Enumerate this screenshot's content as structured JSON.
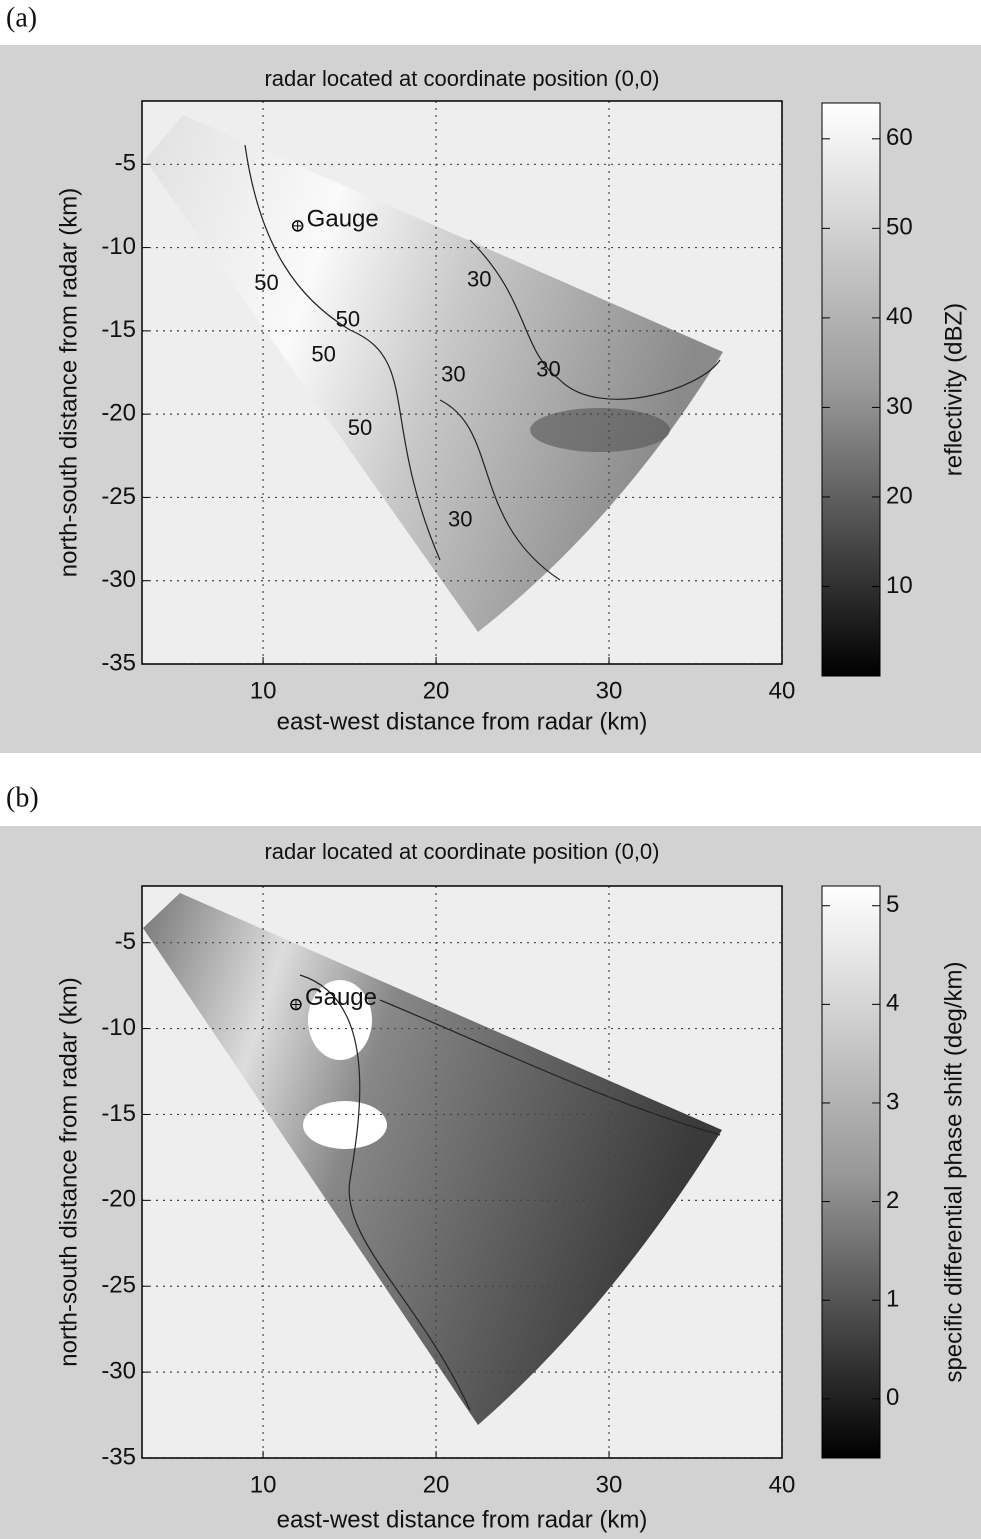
{
  "chart_data": [
    {
      "type": "contour",
      "panel_label": "(a)",
      "title": "radar located at coordinate position (0,0)",
      "x_label": "east-west distance from radar (km)",
      "y_label": "north-south distance from radar (km)",
      "xlim": [
        3,
        40
      ],
      "xticks": [
        10,
        20,
        30,
        40
      ],
      "ylim": [
        -35,
        -1.2
      ],
      "yticks": [
        -5,
        -10,
        -15,
        -20,
        -25,
        -30,
        -35
      ],
      "grid": true,
      "colorbar_label": "reflectivity (dBZ)",
      "clim": [
        0,
        64
      ],
      "cticks": [
        10,
        20,
        30,
        40,
        50,
        60
      ],
      "annotations": [
        {
          "text": "Gauge",
          "x": 12.0,
          "y": -8.7
        }
      ],
      "contour_labels": [
        {
          "value": 50,
          "x": 10.2,
          "y": -12.2
        },
        {
          "value": 50,
          "x": 14.9,
          "y": -14.4
        },
        {
          "value": 50,
          "x": 13.5,
          "y": -16.5
        },
        {
          "value": 50,
          "x": 15.6,
          "y": -20.9
        },
        {
          "value": 30,
          "x": 22.5,
          "y": -12.0
        },
        {
          "value": 30,
          "x": 21.0,
          "y": -17.7
        },
        {
          "value": 30,
          "x": 26.5,
          "y": -17.4
        },
        {
          "value": 30,
          "x": 21.4,
          "y": -26.4
        }
      ]
    },
    {
      "type": "contour",
      "panel_label": "(b)",
      "title": "radar located at coordinate position (0,0)",
      "x_label": "east-west distance from radar (km)",
      "y_label": "north-south distance from radar (km)",
      "xlim": [
        3,
        40
      ],
      "xticks": [
        10,
        20,
        30,
        40
      ],
      "ylim": [
        -35,
        -1.7
      ],
      "yticks": [
        -5,
        -10,
        -15,
        -20,
        -25,
        -30,
        -35
      ],
      "grid": true,
      "colorbar_label": "specific differential phase shift (deg/km)",
      "clim": [
        -0.6,
        5.2
      ],
      "cticks": [
        0,
        1,
        2,
        3,
        4,
        5
      ],
      "annotations": [
        {
          "text": "Gauge",
          "x": 11.9,
          "y": -8.6
        }
      ],
      "contour_labels": []
    }
  ]
}
